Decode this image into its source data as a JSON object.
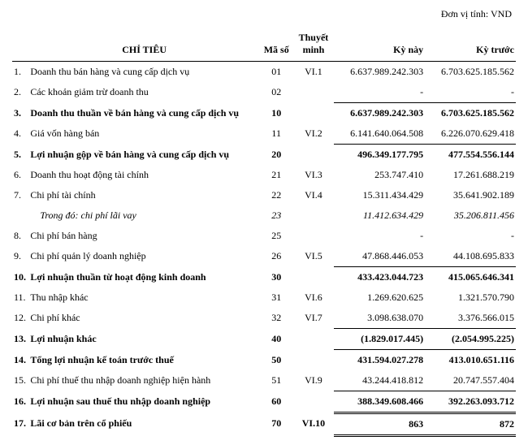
{
  "unit_label": "Đơn vị tính: VND",
  "headers": {
    "name": "CHỈ TIÊU",
    "code": "Mã số",
    "note": "Thuyết minh",
    "current": "Kỳ này",
    "previous": "Kỳ trước"
  },
  "rows": [
    {
      "idx": "1.",
      "name": "Doanh thu bán hàng và cung cấp dịch vụ",
      "code": "01",
      "note": "VI.1",
      "cur": "6.637.989.242.303",
      "prev": "6.703.625.185.562",
      "bold": false
    },
    {
      "idx": "2.",
      "name": "Các khoản giảm trừ doanh thu",
      "code": "02",
      "note": "",
      "cur": "-",
      "prev": "-",
      "bold": false
    },
    {
      "idx": "3.",
      "name": "Doanh thu thuần về bán hàng và cung cấp dịch vụ",
      "code": "10",
      "note": "",
      "cur": "6.637.989.242.303",
      "prev": "6.703.625.185.562",
      "bold": true,
      "topline": true
    },
    {
      "idx": "4.",
      "name": "Giá vốn hàng bán",
      "code": "11",
      "note": "VI.2",
      "cur": "6.141.640.064.508",
      "prev": "6.226.070.629.418",
      "bold": false
    },
    {
      "idx": "5.",
      "name": "Lợi nhuận gộp về bán hàng và cung cấp dịch vụ",
      "code": "20",
      "note": "",
      "cur": "496.349.177.795",
      "prev": "477.554.556.144",
      "bold": true,
      "topline": true
    },
    {
      "idx": "6.",
      "name": "Doanh thu hoạt động tài chính",
      "code": "21",
      "note": "VI.3",
      "cur": "253.747.410",
      "prev": "17.261.688.219",
      "bold": false
    },
    {
      "idx": "7.",
      "name": "Chi phí tài chính",
      "code": "22",
      "note": "VI.4",
      "cur": "15.311.434.429",
      "prev": "35.641.902.189",
      "bold": false
    },
    {
      "idx": "",
      "name": "Trong đó: chi phí lãi vay",
      "code": "23",
      "note": "",
      "cur": "11.412.634.429",
      "prev": "35.206.811.456",
      "bold": false,
      "italic": true,
      "indent": true
    },
    {
      "idx": "8.",
      "name": "Chi phí bán hàng",
      "code": "25",
      "note": "",
      "cur": "-",
      "prev": "-",
      "bold": false
    },
    {
      "idx": "9.",
      "name": "Chi phí quản lý doanh nghiệp",
      "code": "26",
      "note": "VI.5",
      "cur": "47.868.446.053",
      "prev": "44.108.695.833",
      "bold": false
    },
    {
      "idx": "10.",
      "name": "Lợi nhuận thuần từ hoạt động kinh doanh",
      "code": "30",
      "note": "",
      "cur": "433.423.044.723",
      "prev": "415.065.646.341",
      "bold": true,
      "topline": true
    },
    {
      "idx": "11.",
      "name": "Thu nhập khác",
      "code": "31",
      "note": "VI.6",
      "cur": "1.269.620.625",
      "prev": "1.321.570.790",
      "bold": false
    },
    {
      "idx": "12.",
      "name": "Chi phí khác",
      "code": "32",
      "note": "VI.7",
      "cur": "3.098.638.070",
      "prev": "3.376.566.015",
      "bold": false
    },
    {
      "idx": "13.",
      "name": "Lợi nhuận khác",
      "code": "40",
      "note": "",
      "cur": "(1.829.017.445)",
      "prev": "(2.054.995.225)",
      "bold": true,
      "topline": true
    },
    {
      "idx": "14.",
      "name": "Tổng lợi nhuận kế toán trước thuế",
      "code": "50",
      "note": "",
      "cur": "431.594.027.278",
      "prev": "413.010.651.116",
      "bold": true,
      "topline": true
    },
    {
      "idx": "15.",
      "name": "Chi phí thuế thu nhập doanh nghiệp hiện hành",
      "code": "51",
      "note": "VI.9",
      "cur": "43.244.418.812",
      "prev": "20.747.557.404",
      "bold": false
    },
    {
      "idx": "16.",
      "name": "Lợi nhuận sau thuế thu nhập doanh nghiệp",
      "code": "60",
      "note": "",
      "cur": "388.349.608.466",
      "prev": "392.263.093.712",
      "bold": true,
      "topline": true,
      "double": true
    },
    {
      "idx": "17.",
      "name": "Lãi cơ bản trên cổ phiếu",
      "code": "70",
      "note": "VI.10",
      "cur": "863",
      "prev": "872",
      "bold": true,
      "double": true
    }
  ],
  "style": {
    "font_family": "Times New Roman",
    "font_size_pt": 12,
    "text_color": "#000000",
    "background_color": "#ffffff",
    "border_color": "#000000"
  }
}
